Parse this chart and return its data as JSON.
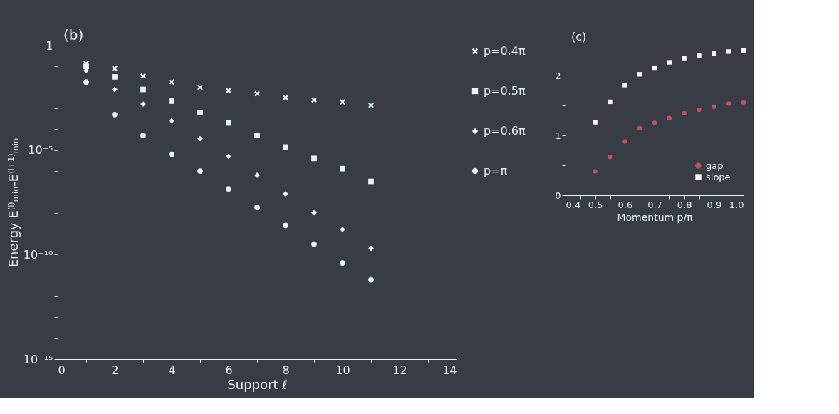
{
  "chart_data": [
    {
      "type": "scatter",
      "xlabel": "Support ℓ",
      "ylabel": "Energy E⁽ˡ⁾ₘᵢₙ-E⁽ˡ⁺¹⁾ₘᵢₙ",
      "annotations": [
        "(b)"
      ],
      "log": "y",
      "grid": false,
      "legend": "right",
      "xlim": [
        0,
        14
      ],
      "xticks": [
        0,
        {
          "value": 1,
          "label": null
        },
        2,
        {
          "value": 3,
          "label": null
        },
        4,
        {
          "value": 5,
          "label": null
        },
        6,
        {
          "value": 7,
          "label": null
        },
        8,
        {
          "value": 9,
          "label": null
        },
        10,
        {
          "value": 11,
          "label": null
        },
        12,
        {
          "value": 13,
          "label": null
        },
        14
      ],
      "ylim": [
        1e-15,
        1
      ],
      "yticks": [
        {
          "value": 1e-15,
          "label": "10⁻¹⁵"
        },
        {
          "value": 1e-14,
          "label": null
        },
        {
          "value": 1e-13,
          "label": null
        },
        {
          "value": 1e-12,
          "label": null
        },
        {
          "value": 1e-11,
          "label": null
        },
        {
          "value": 1e-10,
          "label": "10⁻¹⁰"
        },
        {
          "value": 1e-09,
          "label": null
        },
        {
          "value": 1e-08,
          "label": null
        },
        {
          "value": 1e-07,
          "label": null
        },
        {
          "value": 1e-06,
          "label": null
        },
        {
          "value": 1e-05,
          "label": "10⁻⁵"
        },
        {
          "value": 0.0001,
          "label": null
        },
        {
          "value": 0.001,
          "label": null
        },
        {
          "value": 0.01,
          "label": null
        },
        {
          "value": 0.1,
          "label": null
        },
        1
      ],
      "x": [
        1,
        2,
        3,
        4,
        5,
        6,
        7,
        8,
        9,
        10,
        11
      ],
      "series": [
        {
          "name": "p=0.4π",
          "color": "#e4f4f8",
          "marker": "cross",
          "values": [
            0.14,
            0.08,
            0.035,
            0.018,
            0.01,
            0.007,
            0.005,
            0.0032,
            0.0025,
            0.002,
            0.0014
          ]
        },
        {
          "name": "p=0.5π",
          "color": "#e4f4f8",
          "marker": "square",
          "values": [
            0.1,
            0.032,
            0.008,
            0.0022,
            0.00063,
            0.0002,
            5e-05,
            1.4e-05,
            4e-06,
            1.3e-06,
            3.2e-07
          ]
        },
        {
          "name": "p=0.6π",
          "color": "#e4f4f8",
          "marker": "diamond",
          "values": [
            0.063,
            0.008,
            0.0016,
            0.00025,
            3.5e-05,
            5e-06,
            6.3e-07,
            8e-08,
            1e-08,
            1.6e-09,
            2e-10
          ]
        },
        {
          "name": "p=π",
          "color": "#e4f4f8",
          "marker": "circle",
          "values": [
            0.018,
            0.0005,
            5e-05,
            6.3e-06,
            1e-06,
            1.4e-07,
            1.8e-08,
            2.5e-09,
            3.2e-10,
            4e-11,
            6.3e-12
          ]
        }
      ]
    },
    {
      "type": "scatter",
      "xlabel": "Momentum p/π",
      "annotations": [
        "(c)"
      ],
      "grid": false,
      "legend": "bottom right",
      "xlim": [
        0.4,
        1.0
      ],
      "xticks": [
        0.4,
        {
          "value": 0.45,
          "label": null
        },
        0.5,
        {
          "value": 0.55,
          "label": null
        },
        0.6,
        {
          "value": 0.65,
          "label": null
        },
        0.7,
        {
          "value": 0.75,
          "label": null
        },
        0.8,
        {
          "value": 0.85,
          "label": null
        },
        0.9,
        {
          "value": 0.95,
          "label": null
        },
        {
          "value": 1,
          "label": "1.0"
        }
      ],
      "ylim": [
        0,
        2.5
      ],
      "yticks": [
        0,
        {
          "value": 0.5,
          "label": null
        },
        1,
        {
          "value": 1.5,
          "label": null
        },
        2
      ],
      "x": [
        0.5,
        0.55,
        0.6,
        0.65,
        0.7,
        0.75,
        0.8,
        0.85,
        0.9,
        0.95,
        1.0
      ],
      "series": [
        {
          "name": "gap",
          "color": "#c4505e",
          "marker": "circle",
          "values": [
            0.4,
            0.64,
            0.9,
            1.12,
            1.21,
            1.29,
            1.37,
            1.43,
            1.48,
            1.53,
            1.55
          ]
        },
        {
          "name": "slope",
          "color": "#f6f6f6",
          "marker": "square",
          "values": [
            1.22,
            1.56,
            1.84,
            2.02,
            2.13,
            2.22,
            2.29,
            2.33,
            2.37,
            2.4,
            2.42
          ]
        }
      ]
    }
  ]
}
